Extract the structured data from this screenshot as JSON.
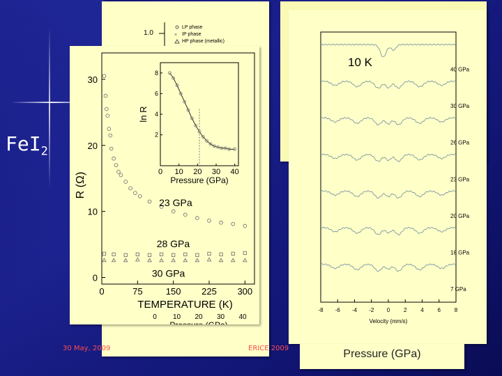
{
  "slide": {
    "title": "FeI",
    "title_sub": "2",
    "footer_date": "30 May, 2009",
    "footer_event": "ERICE 2009",
    "right_panel_caption": "Pressure (GPa)"
  },
  "colors": {
    "background": "#13187f",
    "panel": "#ffffc8",
    "footer": "#ff4c4c"
  },
  "back_panel": {
    "legend": [
      "LP phase",
      "IP phase",
      "HP phase (metallic)"
    ],
    "tick_1_0": "1.0"
  },
  "chart_data": [
    {
      "type": "scatter",
      "name": "resistance-vs-temperature",
      "xlabel": "TEMPERATURE (K)",
      "ylabel": "R  (Ω)",
      "xlim": [
        0,
        320
      ],
      "ylim": [
        -1,
        34
      ],
      "xticks": [
        "0",
        "75",
        "150",
        "225",
        "300"
      ],
      "yticks": [
        "0",
        "10",
        "20",
        "30"
      ],
      "annotations": [
        "23 GPa",
        "28 GPa",
        "30 GPa"
      ],
      "secondary_axis": {
        "label": "Pressure (GPa)",
        "ticks": [
          "0",
          "10",
          "20",
          "30",
          "40"
        ]
      },
      "series": [
        {
          "name": "23 GPa",
          "x": [
            5,
            8,
            10,
            12,
            15,
            18,
            20,
            25,
            30,
            35,
            40,
            50,
            60,
            70,
            80,
            100,
            125,
            150,
            175,
            200,
            225,
            250,
            275,
            300
          ],
          "y": [
            30.5,
            27.5,
            25.5,
            24.5,
            22.5,
            21.5,
            19.5,
            18,
            17,
            16,
            15.5,
            14.5,
            13.5,
            12.8,
            12.3,
            11.5,
            10.7,
            10,
            9.5,
            9,
            8.6,
            8.3,
            8.1,
            7.8
          ]
        },
        {
          "name": "28 GPa",
          "x": [
            5,
            25,
            50,
            75,
            100,
            125,
            150,
            175,
            200,
            225,
            250,
            275,
            300
          ],
          "y": [
            3.6,
            3.5,
            3.4,
            3.5,
            3.4,
            3.5,
            3.4,
            3.5,
            3.4,
            3.6,
            3.5,
            3.6,
            3.7
          ]
        },
        {
          "name": "30 GPa",
          "x": [
            5,
            25,
            50,
            75,
            100,
            125,
            150,
            175,
            200,
            225,
            250,
            275,
            300
          ],
          "y": [
            2.6,
            2.6,
            2.6,
            2.7,
            2.6,
            2.6,
            2.6,
            2.6,
            2.6,
            2.7,
            2.6,
            2.6,
            2.6
          ]
        }
      ],
      "inset": {
        "type": "line",
        "xlabel": "Pressure (GPa)",
        "ylabel": "ln R",
        "xlim": [
          0,
          42
        ],
        "ylim": [
          -1,
          9
        ],
        "xticks": [
          "0",
          "10",
          "20",
          "30",
          "40"
        ],
        "yticks": [
          "2",
          "4",
          "6",
          "8"
        ],
        "x": [
          5,
          7,
          9,
          11,
          13,
          15,
          17,
          19,
          21,
          23,
          25,
          27,
          29,
          31,
          33,
          35,
          37,
          40
        ],
        "y": [
          8.0,
          7.5,
          6.8,
          6.0,
          5.2,
          4.4,
          3.6,
          2.9,
          2.3,
          1.8,
          1.4,
          1.1,
          0.9,
          0.8,
          0.7,
          0.7,
          0.6,
          0.6
        ]
      }
    },
    {
      "type": "line",
      "name": "mossbauer-spectra",
      "xlabel": "Velocity (mm/s)",
      "xlim": [
        -8,
        8
      ],
      "xticks": [
        "-8",
        "-6",
        "-4",
        "-2",
        "0",
        "2",
        "4",
        "6",
        "8"
      ],
      "annotation": "10 K",
      "series": [
        {
          "name": "40 GPa"
        },
        {
          "name": "30 GPa"
        },
        {
          "name": "26 GPa"
        },
        {
          "name": "23 GPa"
        },
        {
          "name": "20 GPa"
        },
        {
          "name": "18 GPa"
        },
        {
          "name": "7 GPa"
        }
      ]
    }
  ]
}
